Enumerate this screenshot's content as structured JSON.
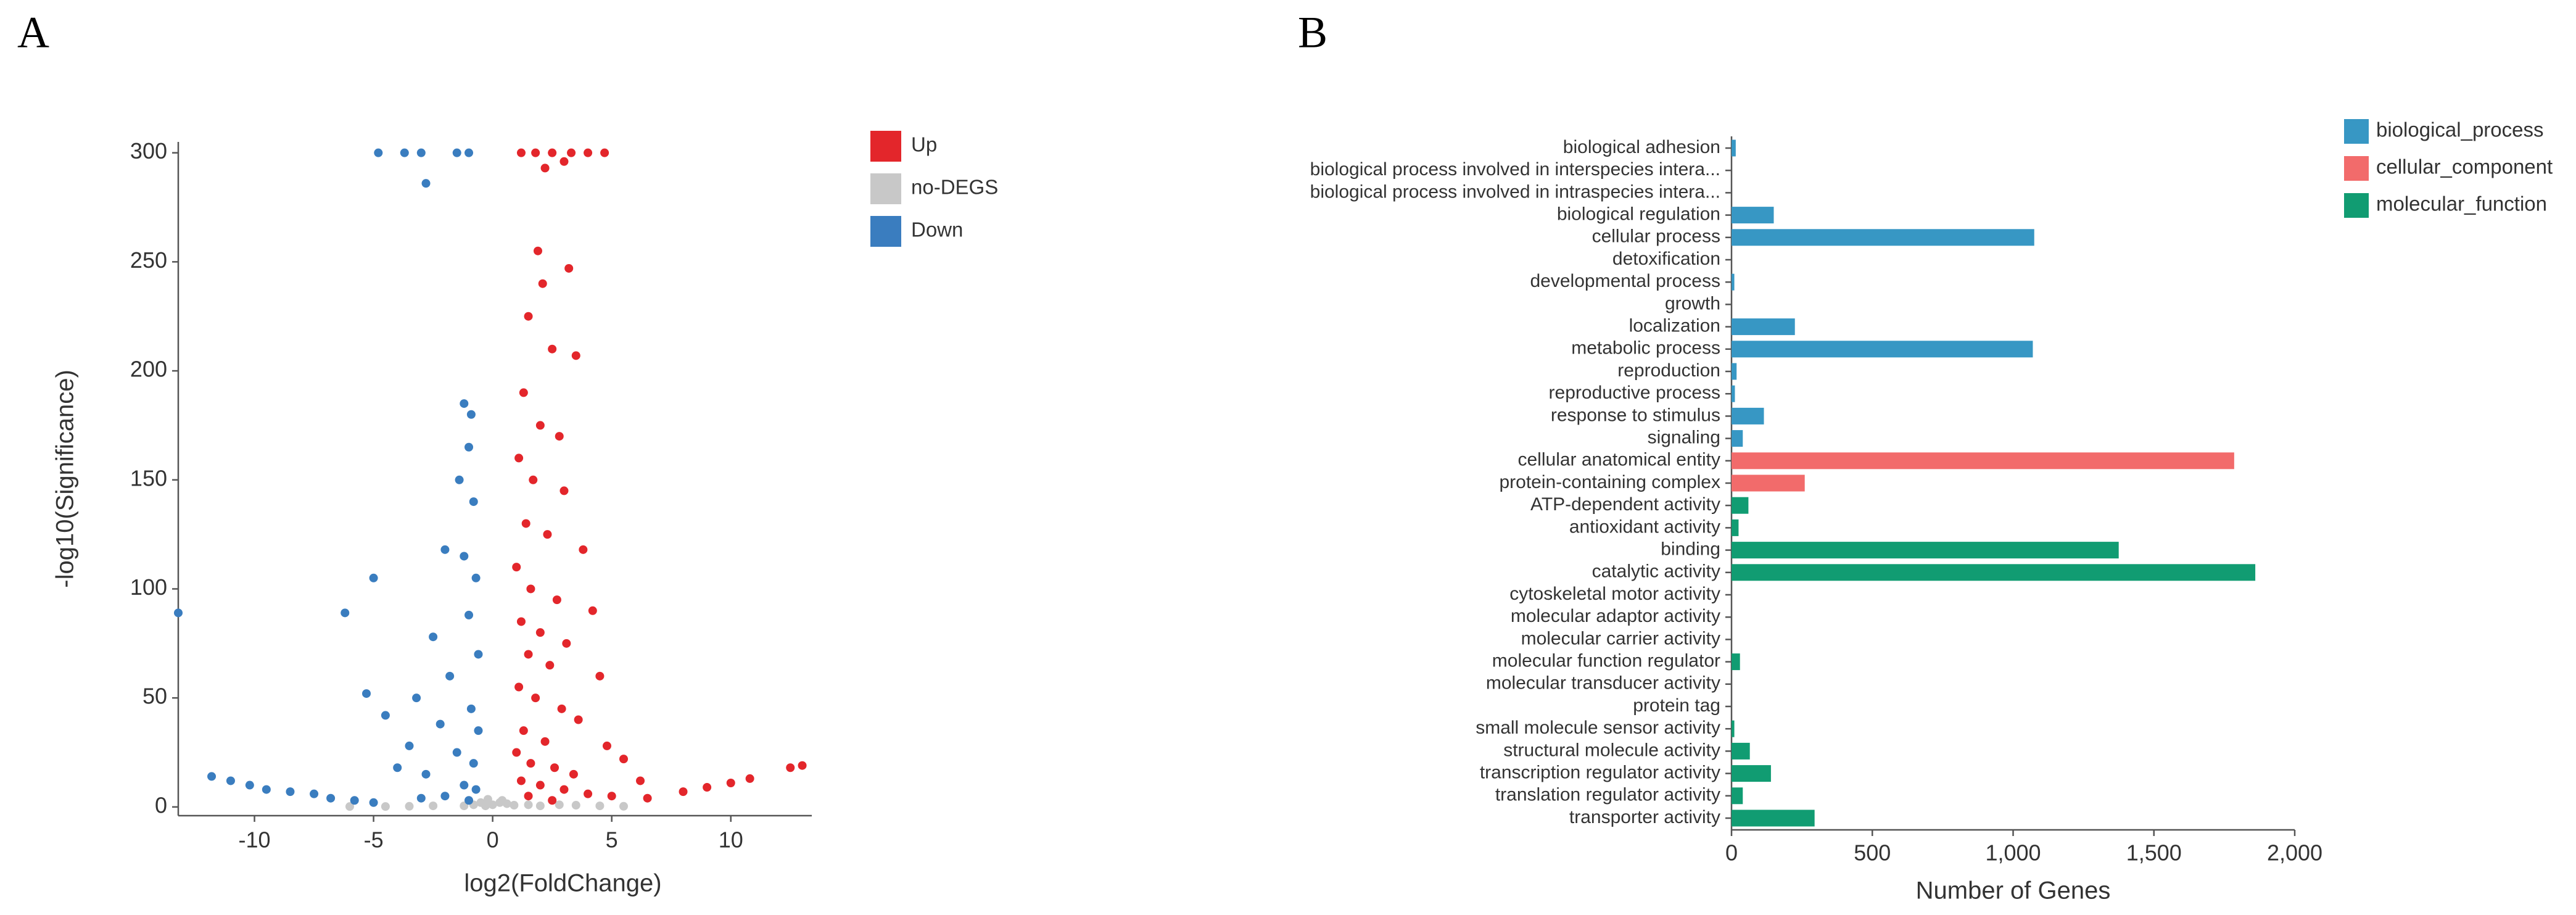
{
  "panel_labels": [
    "A",
    "B"
  ],
  "chart_data": [
    {
      "type": "scatter",
      "x_label": "log2(FoldChange)",
      "y_label": "-log10(Significance)",
      "xlim": [
        -13.2,
        13.4
      ],
      "ylim": [
        -4,
        305
      ],
      "xticks": [
        -10,
        -5,
        0,
        5,
        10
      ],
      "yticks": [
        0,
        50,
        100,
        150,
        200,
        250,
        300
      ],
      "series": [
        {
          "name": "Up",
          "color": "#e3262b",
          "x": [
            1.2,
            1.8,
            2.5,
            3.3,
            4.0,
            4.7,
            3.0,
            2.2,
            1.9,
            2.1,
            3.2,
            1.5,
            2.5,
            3.5,
            1.3,
            2.0,
            2.8,
            1.1,
            1.7,
            3.0,
            1.4,
            2.3,
            3.8,
            1.0,
            1.6,
            2.7,
            4.2,
            1.2,
            2.0,
            3.1,
            1.5,
            2.4,
            4.5,
            1.1,
            1.8,
            2.9,
            3.6,
            1.3,
            2.2,
            4.8,
            5.5,
            1.0,
            1.6,
            2.6,
            3.4,
            6.2,
            1.2,
            2.0,
            3.0,
            4.0,
            5.0,
            6.5,
            8.0,
            9.0,
            10.0,
            10.8,
            12.5,
            13.0,
            1.5,
            2.5
          ],
          "y": [
            300,
            300,
            300,
            300,
            300,
            300,
            296,
            293,
            255,
            240,
            247,
            225,
            210,
            207,
            190,
            175,
            170,
            160,
            150,
            145,
            130,
            125,
            118,
            110,
            100,
            95,
            90,
            85,
            80,
            75,
            70,
            65,
            60,
            55,
            50,
            45,
            40,
            35,
            30,
            28,
            22,
            25,
            20,
            18,
            15,
            12,
            12,
            10,
            8,
            6,
            5,
            4,
            7,
            9,
            11,
            13,
            18,
            19,
            5,
            3
          ]
        },
        {
          "name": "no-DEGS",
          "color": "#c8c8c8",
          "x": [
            -0.8,
            -0.5,
            -0.3,
            0,
            0.3,
            0.6,
            0.9,
            -1.2,
            1.5,
            2.0,
            2.8,
            3.5,
            4.5,
            5.5,
            -2.5,
            -3.5,
            -4.5,
            -6.0,
            0.4,
            -0.2
          ],
          "y": [
            1,
            2,
            0.5,
            1,
            2,
            1.5,
            0.8,
            0.5,
            1,
            0.5,
            1,
            0.8,
            0.5,
            0.3,
            0.5,
            0.3,
            0.2,
            0.2,
            3,
            3.5
          ]
        },
        {
          "name": "Down",
          "color": "#3a7dbf",
          "x": [
            -4.8,
            -3.7,
            -3.0,
            -1.5,
            -1.0,
            -2.8,
            -1.2,
            -0.9,
            -1.0,
            -1.4,
            -0.8,
            -2.0,
            -1.2,
            -0.7,
            -5.0,
            -6.2,
            -13.2,
            -1.0,
            -2.5,
            -0.6,
            -1.8,
            -5.3,
            -3.2,
            -0.9,
            -4.5,
            -2.2,
            -0.6,
            -3.5,
            -1.5,
            -0.8,
            -4.0,
            -2.8,
            -11.8,
            -11.0,
            -10.2,
            -9.5,
            -8.5,
            -7.5,
            -6.8,
            -5.8,
            -5.0,
            -1.2,
            -0.7,
            -2.0,
            -3.0,
            -1.0
          ],
          "y": [
            300,
            300,
            300,
            300,
            300,
            286,
            185,
            180,
            165,
            150,
            140,
            118,
            115,
            105,
            105,
            89,
            89,
            88,
            78,
            70,
            60,
            52,
            50,
            45,
            42,
            38,
            35,
            28,
            25,
            20,
            18,
            15,
            14,
            12,
            10,
            8,
            7,
            6,
            4,
            3,
            2,
            10,
            8,
            5,
            4,
            3
          ]
        }
      ]
    },
    {
      "type": "bar",
      "orientation": "horizontal",
      "x_label": "Number of Genes",
      "xlim": [
        0,
        2000
      ],
      "xticks": [
        0,
        500,
        {
          "value": 1000,
          "label": "1,000"
        },
        {
          "value": 1500,
          "label": "1,500"
        },
        {
          "value": 2000,
          "label": "2,000"
        }
      ],
      "categories": [
        "biological adhesion",
        "biological process involved in interspecies intera...",
        "biological process involved in intraspecies intera...",
        "biological regulation",
        "cellular process",
        "detoxification",
        "developmental process",
        "growth",
        "localization",
        "metabolic process",
        "reproduction",
        "reproductive process",
        "response to stimulus",
        "signaling",
        "cellular anatomical entity",
        "protein-containing complex",
        "ATP-dependent activity",
        "antioxidant activity",
        "binding",
        "catalytic activity",
        "cytoskeletal motor activity",
        "molecular adaptor activity",
        "molecular carrier activity",
        "molecular function regulator",
        "molecular transducer activity",
        "protein tag",
        "small molecule sensor activity",
        "structural molecule activity",
        "transcription regulator activity",
        "translation regulator activity",
        "transporter activity"
      ],
      "series": [
        {
          "name": "biological_process",
          "color": "#3797c4",
          "values": [
            15,
            0,
            0,
            150,
            1075,
            0,
            10,
            0,
            225,
            1070,
            18,
            12,
            115,
            40,
            null,
            null,
            null,
            null,
            null,
            null,
            null,
            null,
            null,
            null,
            null,
            null,
            null,
            null,
            null,
            null,
            null
          ]
        },
        {
          "name": "cellular_component",
          "color": "#f26b6b",
          "values": [
            null,
            null,
            null,
            null,
            null,
            null,
            null,
            null,
            null,
            null,
            null,
            null,
            null,
            null,
            1785,
            260,
            null,
            null,
            null,
            null,
            null,
            null,
            null,
            null,
            null,
            null,
            null,
            null,
            null,
            null,
            null
          ]
        },
        {
          "name": "molecular_function",
          "color": "#119c72",
          "values": [
            null,
            null,
            null,
            null,
            null,
            null,
            null,
            null,
            null,
            null,
            null,
            null,
            null,
            null,
            null,
            null,
            60,
            25,
            1375,
            1860,
            0,
            0,
            0,
            30,
            0,
            0,
            10,
            65,
            140,
            40,
            295
          ]
        }
      ]
    }
  ]
}
